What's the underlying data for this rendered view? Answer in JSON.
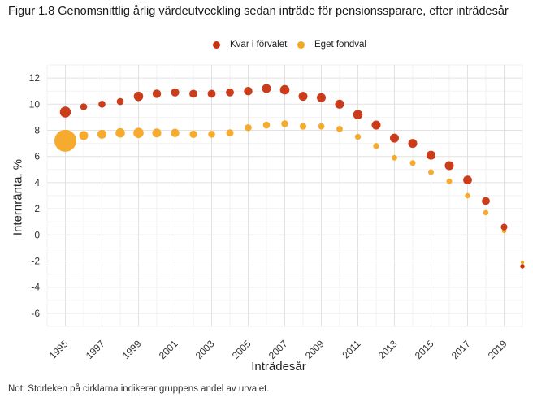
{
  "header": {
    "title": "Figur 1.8 Genomsnittlig årlig värdeutveckling sedan inträde för pensionssparare, efter inträdesår"
  },
  "note": "Not: Storleken på cirklarna indikerar gruppens andel av urvalet.",
  "chart_data": {
    "type": "scatter",
    "title": "Figur 1.8 Genomsnittlig årlig värdeutveckling sedan inträde för pensionssparare, efter inträdesår",
    "xlabel": "Inträdesår",
    "ylabel": "Internränta, %",
    "xlim": [
      1994,
      2020
    ],
    "ylim": [
      -7,
      13
    ],
    "y_ticks": [
      "12",
      "10",
      "8",
      "6",
      "4",
      "2",
      "0",
      "-2",
      "-4",
      "-6"
    ],
    "x_ticks": [
      "1995",
      "1997",
      "1999",
      "2001",
      "2003",
      "2005",
      "2007",
      "2009",
      "2011",
      "2013",
      "2015",
      "2017",
      "2019"
    ],
    "grid": true,
    "legend_position": "top",
    "note": "Storleken på cirklarna indikerar gruppens andel av urvalet.",
    "x": [
      1995,
      1996,
      1997,
      1998,
      1999,
      2000,
      2001,
      2002,
      2003,
      2004,
      2005,
      2006,
      2007,
      2008,
      2009,
      2010,
      2011,
      2012,
      2013,
      2014,
      2015,
      2016,
      2017,
      2018,
      2019
    ],
    "series": [
      {
        "name": "Kvar i förvalet",
        "color": "#c8320f",
        "values": [
          9.4,
          9.8,
          10.0,
          10.2,
          10.6,
          10.8,
          10.9,
          10.8,
          10.8,
          10.9,
          11.0,
          11.2,
          11.1,
          10.6,
          10.5,
          10.0,
          9.2,
          8.4,
          7.4,
          7.0,
          6.1,
          5.3,
          4.2,
          2.6,
          0.6
        ],
        "sizes": [
          3.0,
          1.2,
          1.2,
          1.2,
          2.2,
          1.8,
          1.7,
          1.6,
          1.6,
          1.6,
          1.8,
          2.0,
          2.2,
          2.0,
          2.0,
          2.0,
          2.2,
          2.0,
          2.0,
          2.0,
          2.0,
          2.0,
          1.9,
          1.6,
          1.1
        ]
      },
      {
        "name": "Eget fondval",
        "color": "#f5a623",
        "values": [
          7.2,
          7.6,
          7.7,
          7.8,
          7.8,
          7.8,
          7.8,
          7.7,
          7.7,
          7.8,
          8.2,
          8.4,
          8.5,
          8.3,
          8.3,
          8.1,
          7.5,
          6.8,
          5.9,
          5.5,
          4.8,
          4.1,
          3.0,
          1.7,
          0.3
        ],
        "sizes": [
          12.0,
          2.0,
          2.0,
          2.2,
          2.6,
          2.0,
          1.8,
          1.4,
          1.2,
          1.3,
          1.2,
          1.2,
          1.2,
          1.1,
          1.0,
          1.0,
          0.9,
          0.9,
          0.8,
          0.8,
          0.8,
          0.8,
          0.7,
          0.7,
          0.5
        ]
      }
    ],
    "extra_points": [
      {
        "series": "Kvar i förvalet",
        "x": 2020,
        "y": -2.4,
        "size": 0.5
      },
      {
        "series": "Eget fondval",
        "x": 2020,
        "y": -2.1,
        "size": 0.3
      }
    ]
  }
}
